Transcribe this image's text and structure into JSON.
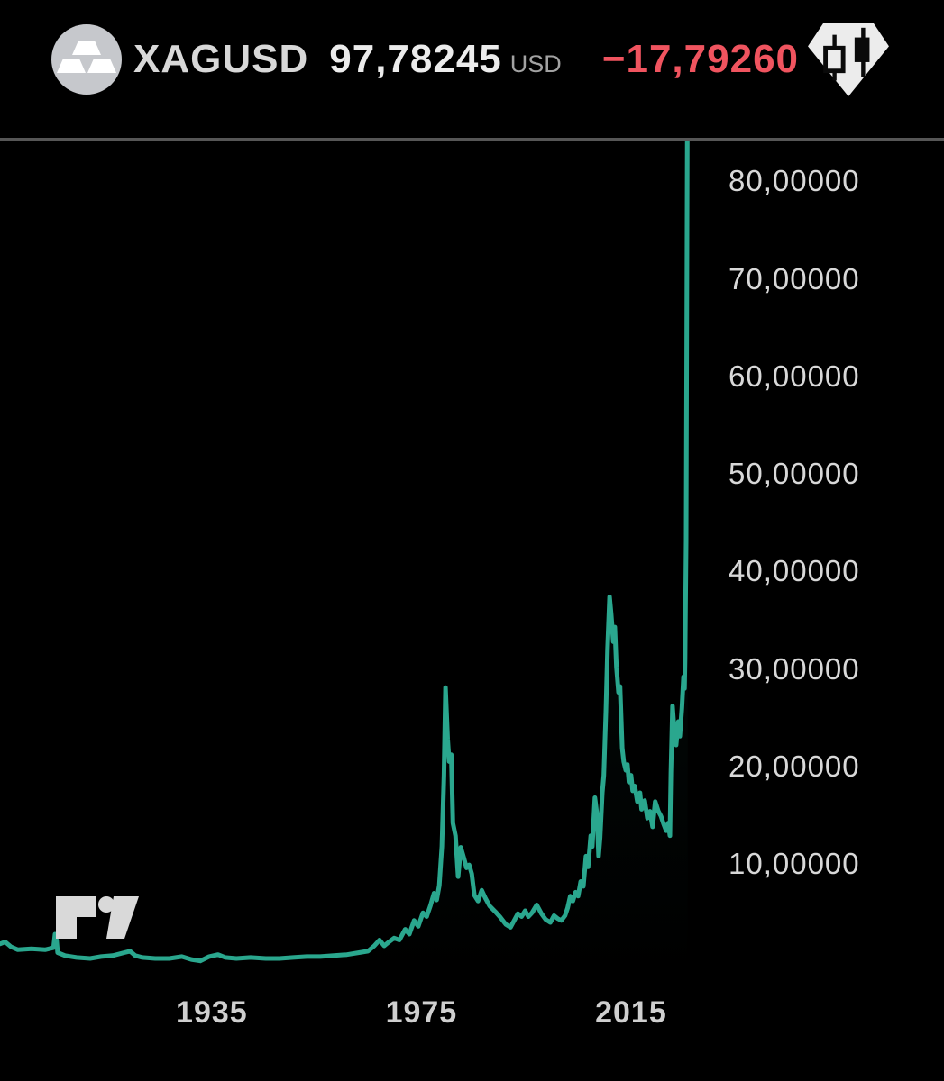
{
  "header": {
    "symbol": "XAGUSD",
    "price": "97,78245",
    "currency": "USD",
    "change": "−17,79260"
  },
  "icons": {
    "avatar": "silver-ingots",
    "chart_type": "candlesticks-in-gem",
    "brand": "tradingview"
  },
  "colors": {
    "background": "#000000",
    "line": "#2aa78e",
    "area_fill": "#2aa78e",
    "change_negative": "#f0545f",
    "axis_text": "#d8d8d8",
    "divider": "#565656"
  },
  "chart_data": {
    "type": "line",
    "title": "XAGUSD silver price history",
    "xlabel": "",
    "ylabel": "USD",
    "grid": false,
    "legend": false,
    "last_price": 97.78245,
    "change": -17.7926,
    "x_range_visible": [
      1894.6,
      2074.7
    ],
    "y_range_visible": [
      -2.1,
      84.2
    ],
    "y_ticks": [
      {
        "label": "80,00000",
        "value": 80
      },
      {
        "label": "70,00000",
        "value": 70
      },
      {
        "label": "60,00000",
        "value": 60
      },
      {
        "label": "50,00000",
        "value": 50
      },
      {
        "label": "40,00000",
        "value": 40
      },
      {
        "label": "30,00000",
        "value": 30
      },
      {
        "label": "20,00000",
        "value": 20
      },
      {
        "label": "10,00000",
        "value": 10
      }
    ],
    "x_ticks": [
      {
        "label": "1935",
        "year": 1935
      },
      {
        "label": "1975",
        "year": 1975
      },
      {
        "label": "2015",
        "year": 2015
      }
    ],
    "points": [
      [
        1894.6,
        1.8
      ],
      [
        1895.6,
        2.0
      ],
      [
        1896.7,
        1.5
      ],
      [
        1898.0,
        1.2
      ],
      [
        1900.6,
        1.3
      ],
      [
        1903.2,
        1.2
      ],
      [
        1904.8,
        1.4
      ],
      [
        1905.1,
        2.8
      ],
      [
        1905.4,
        2.1
      ],
      [
        1905.6,
        0.9
      ],
      [
        1907.0,
        0.6
      ],
      [
        1909.2,
        0.4
      ],
      [
        1911.8,
        0.3
      ],
      [
        1913.9,
        0.5
      ],
      [
        1916.1,
        0.6
      ],
      [
        1918.3,
        0.9
      ],
      [
        1919.4,
        1.05
      ],
      [
        1920.4,
        0.6
      ],
      [
        1921.8,
        0.4
      ],
      [
        1924.2,
        0.3
      ],
      [
        1926.9,
        0.3
      ],
      [
        1929.3,
        0.5
      ],
      [
        1931.1,
        0.2
      ],
      [
        1932.8,
        0.05
      ],
      [
        1934.5,
        0.5
      ],
      [
        1936.2,
        0.7
      ],
      [
        1937.6,
        0.4
      ],
      [
        1939.7,
        0.3
      ],
      [
        1942.4,
        0.4
      ],
      [
        1945.3,
        0.3
      ],
      [
        1947.9,
        0.3
      ],
      [
        1950.5,
        0.4
      ],
      [
        1953.1,
        0.5
      ],
      [
        1955.7,
        0.5
      ],
      [
        1958.3,
        0.6
      ],
      [
        1960.8,
        0.7
      ],
      [
        1963.1,
        0.9
      ],
      [
        1964.8,
        1.05
      ],
      [
        1966.0,
        1.6
      ],
      [
        1967.0,
        2.2
      ],
      [
        1967.9,
        1.6
      ],
      [
        1968.8,
        2.0
      ],
      [
        1969.8,
        2.4
      ],
      [
        1970.8,
        2.2
      ],
      [
        1971.9,
        3.3
      ],
      [
        1972.7,
        2.8
      ],
      [
        1973.6,
        4.2
      ],
      [
        1974.4,
        3.6
      ],
      [
        1975.3,
        5.0
      ],
      [
        1976.0,
        4.6
      ],
      [
        1976.7,
        5.7
      ],
      [
        1977.4,
        7.0
      ],
      [
        1977.9,
        6.3
      ],
      [
        1978.4,
        7.8
      ],
      [
        1978.9,
        11.8
      ],
      [
        1979.3,
        19.1
      ],
      [
        1979.6,
        28.1
      ],
      [
        1980.0,
        22.8
      ],
      [
        1980.3,
        20.5
      ],
      [
        1980.7,
        21.2
      ],
      [
        1981.0,
        14.2
      ],
      [
        1981.5,
        12.9
      ],
      [
        1982.0,
        8.7
      ],
      [
        1982.5,
        11.7
      ],
      [
        1983.1,
        10.6
      ],
      [
        1983.6,
        9.6
      ],
      [
        1984.1,
        9.9
      ],
      [
        1984.6,
        9.0
      ],
      [
        1985.1,
        6.8
      ],
      [
        1985.8,
        6.2
      ],
      [
        1986.5,
        7.3
      ],
      [
        1987.2,
        6.5
      ],
      [
        1988.0,
        5.7
      ],
      [
        1989.1,
        5.1
      ],
      [
        1990.1,
        4.5
      ],
      [
        1991.1,
        3.8
      ],
      [
        1992.0,
        3.5
      ],
      [
        1992.7,
        4.2
      ],
      [
        1993.4,
        4.9
      ],
      [
        1994.1,
        4.6
      ],
      [
        1994.8,
        5.2
      ],
      [
        1995.4,
        4.6
      ],
      [
        1996.1,
        5.0
      ],
      [
        1997.0,
        5.8
      ],
      [
        1997.9,
        4.9
      ],
      [
        1998.7,
        4.3
      ],
      [
        1999.6,
        4.0
      ],
      [
        2000.3,
        4.7
      ],
      [
        2001.0,
        4.4
      ],
      [
        2001.7,
        4.2
      ],
      [
        2002.4,
        4.7
      ],
      [
        2002.9,
        5.5
      ],
      [
        2003.4,
        6.7
      ],
      [
        2003.9,
        6.2
      ],
      [
        2004.4,
        7.1
      ],
      [
        2004.9,
        6.7
      ],
      [
        2005.4,
        8.2
      ],
      [
        2005.9,
        7.7
      ],
      [
        2006.4,
        10.8
      ],
      [
        2006.8,
        9.7
      ],
      [
        2007.3,
        12.9
      ],
      [
        2007.6,
        11.8
      ],
      [
        2008.1,
        16.8
      ],
      [
        2008.5,
        15.0
      ],
      [
        2008.8,
        10.8
      ],
      [
        2009.1,
        12.7
      ],
      [
        2009.5,
        17.3
      ],
      [
        2009.8,
        19.1
      ],
      [
        2010.2,
        25.6
      ],
      [
        2010.5,
        32.0
      ],
      [
        2010.9,
        37.4
      ],
      [
        2011.2,
        35.7
      ],
      [
        2011.6,
        32.8
      ],
      [
        2011.9,
        34.3
      ],
      [
        2012.2,
        30.2
      ],
      [
        2012.6,
        27.6
      ],
      [
        2012.9,
        28.2
      ],
      [
        2013.3,
        21.9
      ],
      [
        2013.6,
        20.5
      ],
      [
        2014.0,
        19.6
      ],
      [
        2014.3,
        20.2
      ],
      [
        2014.6,
        18.4
      ],
      [
        2015.0,
        19.1
      ],
      [
        2015.3,
        17.5
      ],
      [
        2015.7,
        18.0
      ],
      [
        2016.2,
        16.4
      ],
      [
        2016.7,
        17.3
      ],
      [
        2017.0,
        15.6
      ],
      [
        2017.6,
        16.5
      ],
      [
        2018.1,
        14.7
      ],
      [
        2018.6,
        15.4
      ],
      [
        2019.1,
        13.8
      ],
      [
        2019.6,
        16.4
      ],
      [
        2020.2,
        15.4
      ],
      [
        2020.7,
        14.9
      ],
      [
        2021.2,
        14.1
      ],
      [
        2021.7,
        13.4
      ],
      [
        2022.1,
        14.2
      ],
      [
        2022.4,
        12.9
      ],
      [
        2022.6,
        19.3
      ],
      [
        2022.9,
        26.2
      ],
      [
        2023.3,
        23.2
      ],
      [
        2023.6,
        22.2
      ],
      [
        2024.0,
        24.6
      ],
      [
        2024.3,
        23.1
      ],
      [
        2024.7,
        26.0
      ],
      [
        2025.0,
        29.2
      ],
      [
        2025.2,
        28.0
      ],
      [
        2025.3,
        31.0
      ],
      [
        2025.5,
        43.1
      ],
      [
        2025.8,
        97.8
      ]
    ]
  }
}
